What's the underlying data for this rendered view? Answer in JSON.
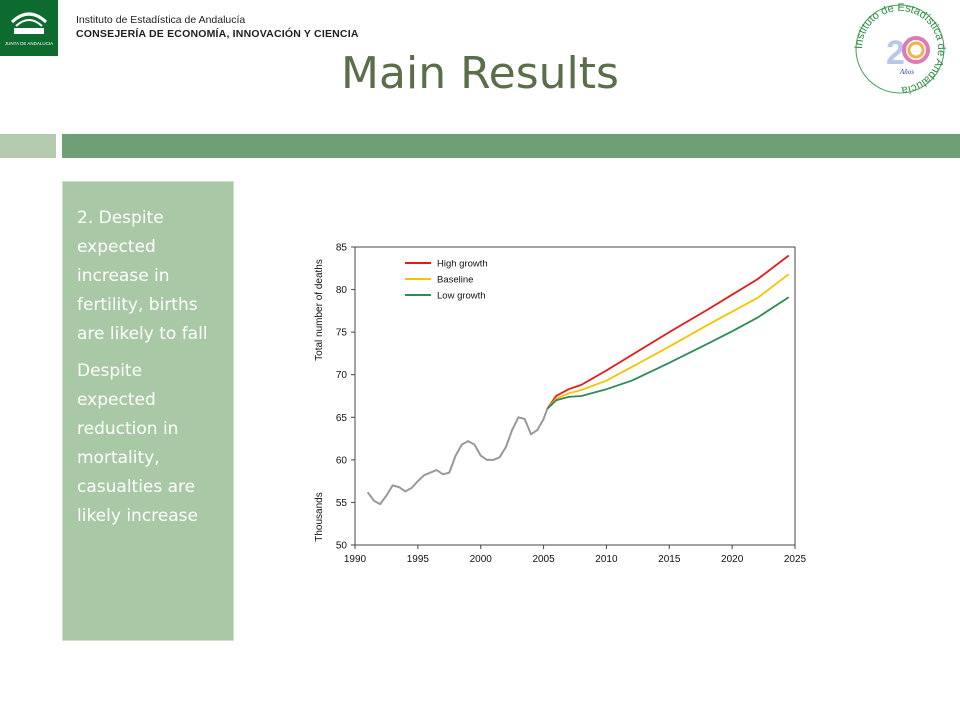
{
  "header": {
    "org_line1": "Instituto de Estadística de Andalucía",
    "org_line2": "CONSEJERÍA DE ECONOMÍA, INNOVACIÓN Y CIENCIA",
    "logo_text": "JUNTA DE ANDALUCIA",
    "seal_text": "Instituto de Estadística de Andalucía",
    "seal_years": "Años"
  },
  "slide": {
    "title": "Main Results",
    "point1": "2. Despite expected increase in fertility, births are likely to fall",
    "point2": "Despite expected reduction in mortality, casualties are likely increase"
  },
  "colors": {
    "title": "#5b6e4a",
    "band": "#6f9f75",
    "sidebar": "#a9c8a6",
    "high_growth": "#e41a1c",
    "baseline": "#f5c400",
    "low_growth": "#2e8b57",
    "historical": "#999999"
  },
  "chart_data": {
    "type": "line",
    "ylabel": "Total number of deaths",
    "yunit": "Thousands",
    "xlim": [
      1990,
      2025
    ],
    "ylim": [
      50,
      85
    ],
    "xticks": [
      1990,
      1995,
      2000,
      2005,
      2010,
      2015,
      2020,
      2025
    ],
    "yticks": [
      50,
      55,
      60,
      65,
      70,
      75,
      80,
      85
    ],
    "legend_position": "top-left",
    "grid": false,
    "series": [
      {
        "name": "",
        "key": "historical",
        "x": [
          1991,
          1991.5,
          1992,
          1992.5,
          1993,
          1993.5,
          1994,
          1994.5,
          1995,
          1995.5,
          1996,
          1996.5,
          1997,
          1997.5,
          1998,
          1998.5,
          1999,
          1999.5,
          2000,
          2000.5,
          2001,
          2001.5,
          2002,
          2002.5,
          2003,
          2003.5,
          2004,
          2004.5,
          2005,
          2005.3
        ],
        "y": [
          56.2,
          55.2,
          54.8,
          55.8,
          57.0,
          56.8,
          56.3,
          56.7,
          57.5,
          58.2,
          58.5,
          58.8,
          58.3,
          58.5,
          60.5,
          61.8,
          62.2,
          61.8,
          60.5,
          60.0,
          60.0,
          60.3,
          61.5,
          63.5,
          65.0,
          64.8,
          63.0,
          63.5,
          64.8,
          66.0
        ]
      },
      {
        "name": "High growth",
        "key": "high_growth",
        "x": [
          2005.3,
          2006,
          2007,
          2008,
          2010,
          2012,
          2015,
          2018,
          2020,
          2022,
          2024.5
        ],
        "y": [
          66.0,
          67.5,
          68.3,
          68.8,
          70.5,
          72.3,
          75.0,
          77.6,
          79.4,
          81.2,
          84.0
        ]
      },
      {
        "name": "Baseline",
        "key": "baseline",
        "x": [
          2005.3,
          2006,
          2007,
          2008,
          2010,
          2012,
          2015,
          2018,
          2020,
          2022,
          2024.5
        ],
        "y": [
          66.0,
          67.2,
          67.8,
          68.2,
          69.3,
          70.9,
          73.3,
          75.8,
          77.4,
          79.0,
          81.8
        ]
      },
      {
        "name": "Low growth",
        "key": "low_growth",
        "x": [
          2005.3,
          2006,
          2007,
          2008,
          2010,
          2012,
          2015,
          2018,
          2020,
          2022,
          2024.5
        ],
        "y": [
          66.0,
          67.0,
          67.4,
          67.5,
          68.3,
          69.3,
          71.4,
          73.6,
          75.1,
          76.7,
          79.1
        ]
      }
    ]
  }
}
